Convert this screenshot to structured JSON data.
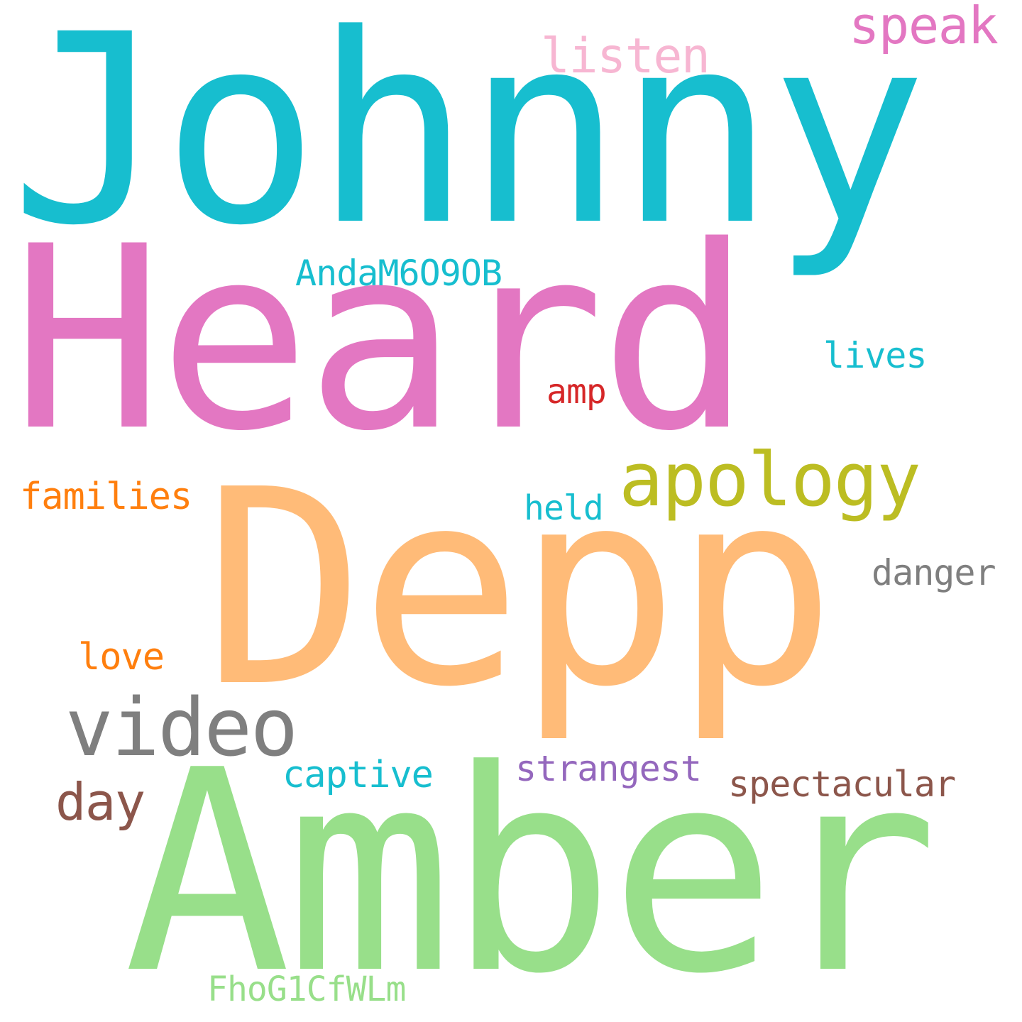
{
  "words": [
    {
      "id": "johnny",
      "text": "Johnny",
      "color": "#17becf"
    },
    {
      "id": "heard",
      "text": "Heard",
      "color": "#e377c2"
    },
    {
      "id": "depp",
      "text": "Depp",
      "color": "#ffbb78"
    },
    {
      "id": "amber",
      "text": "Amber",
      "color": "#98df8a"
    },
    {
      "id": "speak",
      "text": "speak",
      "color": "#e377c2"
    },
    {
      "id": "listen",
      "text": "listen",
      "color": "#f7b6d2"
    },
    {
      "id": "andam",
      "text": "AndaM6O9OB",
      "color": "#17becf"
    },
    {
      "id": "lives",
      "text": "lives",
      "color": "#17becf"
    },
    {
      "id": "amp",
      "text": "amp",
      "color": "#d62728"
    },
    {
      "id": "apology",
      "text": "apology",
      "color": "#bcbd22"
    },
    {
      "id": "families",
      "text": "families",
      "color": "#ff7f0e"
    },
    {
      "id": "held",
      "text": "held",
      "color": "#17becf"
    },
    {
      "id": "danger",
      "text": "danger",
      "color": "#7f7f7f"
    },
    {
      "id": "love",
      "text": "love",
      "color": "#ff7f0e"
    },
    {
      "id": "video",
      "text": "video",
      "color": "#7f7f7f"
    },
    {
      "id": "captive",
      "text": "captive",
      "color": "#17becf"
    },
    {
      "id": "strangest",
      "text": "strangest",
      "color": "#9467bd"
    },
    {
      "id": "spectacular",
      "text": "spectacular",
      "color": "#8c564b"
    },
    {
      "id": "day",
      "text": "day",
      "color": "#8c564b"
    },
    {
      "id": "fhog",
      "text": "FhoG1CfWLm",
      "color": "#98df8a"
    }
  ]
}
